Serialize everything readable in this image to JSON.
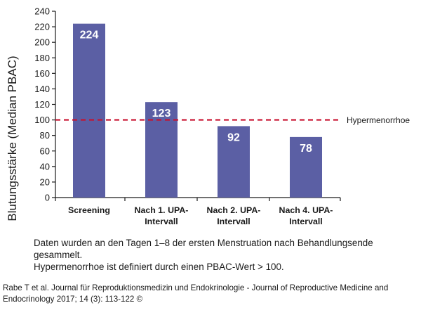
{
  "chart_data": {
    "type": "bar",
    "ylabel": "Blutungsstärke (Median PBAC)",
    "categories": [
      [
        "Screening"
      ],
      [
        "Nach 1. UPA-",
        "Intervall"
      ],
      [
        "Nach 2. UPA-",
        "Intervall"
      ],
      [
        "Nach 4. UPA-",
        "Intervall"
      ]
    ],
    "values": [
      224,
      123,
      92,
      78
    ],
    "data_labels": [
      "224",
      "123",
      "92",
      "78"
    ],
    "ylim": [
      0,
      240
    ],
    "yticks": [
      0,
      20,
      40,
      60,
      80,
      100,
      120,
      140,
      160,
      180,
      200,
      220,
      240
    ],
    "reference_line": {
      "value": 100,
      "label": "Hypermenorrhoe",
      "style": "dashed"
    },
    "bar_color": "#5b5fa4",
    "reference_color": "#c8102e",
    "grid": false
  },
  "note": {
    "line1": "Daten wurden an den Tagen 1–8 der ersten Menstruation nach Behandlungsende",
    "line2": "gesammelt.",
    "line3": "Hypermenorrhoe ist definiert durch einen PBAC-Wert > 100."
  },
  "credit": {
    "line1": "Rabe T et al. Journal für Reproduktionsmedizin und Endokrinologie - Journal of Reproductive Medicine and",
    "line2": "Endocrinology 2017; 14 (3): 113-122 ©"
  }
}
